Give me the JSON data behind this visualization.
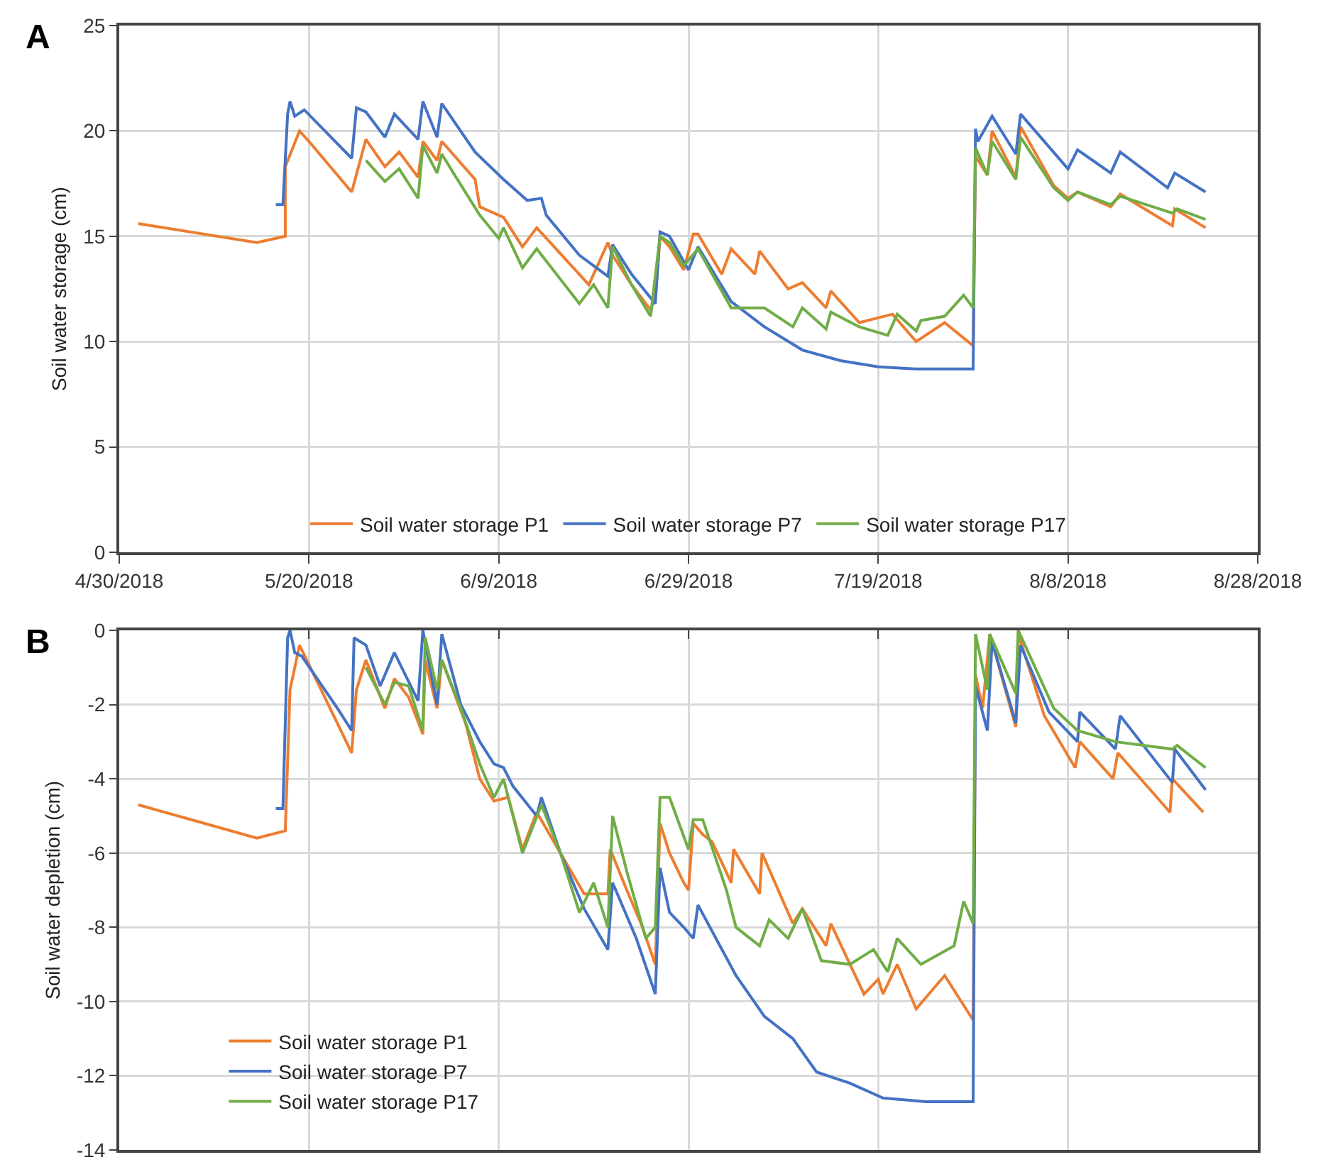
{
  "chart_data": [
    {
      "type": "line",
      "annotations": [
        "A"
      ],
      "ylabel": "Soil water storage (cm)",
      "xlim": [
        "2018-04-30",
        "2018-08-28"
      ],
      "xticks": [
        {
          "value": "2018-04-30",
          "label": "4/30/2018"
        },
        {
          "value": "2018-05-20",
          "label": "5/20/2018"
        },
        {
          "value": "2018-06-09",
          "label": "6/9/2018"
        },
        {
          "value": "2018-06-29",
          "label": "6/29/2018"
        },
        {
          "value": "2018-07-19",
          "label": "7/19/2018"
        },
        {
          "value": "2018-08-08",
          "label": "8/8/2018"
        },
        {
          "value": "2018-08-28",
          "label": "8/28/2018"
        }
      ],
      "ylim": [
        0,
        25
      ],
      "yticks": [
        0,
        5,
        10,
        15,
        20,
        25
      ],
      "grid": true,
      "legend": "bottom",
      "series": [
        {
          "name": "Soil water storage P1",
          "color": "#ed7d31",
          "x": [
            "2018-05-02",
            "2018-05-14T12:00",
            "2018-05-17T12:00",
            "2018-05-17T12:00",
            "2018-05-19",
            "2018-05-20",
            "2018-05-24T12:00",
            "2018-05-26",
            "2018-05-28",
            "2018-05-29T12:00",
            "2018-05-31T12:00",
            "2018-06-01",
            "2018-06-02T12:00",
            "2018-06-03",
            "2018-06-06T12:00",
            "2018-06-07",
            "2018-06-09T12:00",
            "2018-06-11T12:00",
            "2018-06-13",
            "2018-06-18T12:00",
            "2018-06-20T12:00",
            "2018-06-21",
            "2018-06-23",
            "2018-06-25",
            "2018-06-25T12:00",
            "2018-06-26",
            "2018-06-27",
            "2018-06-28T12:00",
            "2018-06-29T12:00",
            "2018-06-30",
            "2018-07-02T12:00",
            "2018-07-03T12:00",
            "2018-07-06",
            "2018-07-06T12:00",
            "2018-07-09T12:00",
            "2018-07-11",
            "2018-07-13T12:00",
            "2018-07-14",
            "2018-07-17",
            "2018-07-20T12:00",
            "2018-07-23",
            "2018-07-26",
            "2018-07-29",
            "2018-07-29T06:00",
            "2018-07-30T12:00",
            "2018-07-31",
            "2018-08-02T12:00",
            "2018-08-03",
            "2018-08-06T12:00",
            "2018-08-08",
            "2018-08-09",
            "2018-08-12T12:00",
            "2018-08-13T12:00",
            "2018-08-19",
            "2018-08-19T06:00",
            "2018-08-22T12:00"
          ],
          "values": [
            15.6,
            14.7,
            15.0,
            18.3,
            20.0,
            19.5,
            17.1,
            19.6,
            18.3,
            19.0,
            17.8,
            19.5,
            18.6,
            19.5,
            17.7,
            16.4,
            15.9,
            14.5,
            15.4,
            12.7,
            14.7,
            14.1,
            12.7,
            11.5,
            12.1,
            15.0,
            14.5,
            13.4,
            15.1,
            15.1,
            13.2,
            14.4,
            13.2,
            14.3,
            12.5,
            12.8,
            11.6,
            12.4,
            10.9,
            11.3,
            10.0,
            10.9,
            9.8,
            18.8,
            17.9,
            20.0,
            17.8,
            20.2,
            17.4,
            16.8,
            17.1,
            16.4,
            17.0,
            15.5,
            16.3,
            15.4
          ]
        },
        {
          "name": "Soil water storage P7",
          "color": "#4472c4",
          "x": [
            "2018-05-16T12:00",
            "2018-05-17T06:00",
            "2018-05-17T18:00",
            "2018-05-18",
            "2018-05-18T12:00",
            "2018-05-19T12:00",
            "2018-05-24T12:00",
            "2018-05-25",
            "2018-05-26",
            "2018-05-28",
            "2018-05-29",
            "2018-05-31T12:00",
            "2018-06-01",
            "2018-06-02T12:00",
            "2018-06-03",
            "2018-06-06T12:00",
            "2018-06-09T12:00",
            "2018-06-12",
            "2018-06-13T12:00",
            "2018-06-14",
            "2018-06-17T12:00",
            "2018-06-20T12:00",
            "2018-06-21",
            "2018-06-23",
            "2018-06-25T12:00",
            "2018-06-26",
            "2018-06-27",
            "2018-06-29",
            "2018-06-30",
            "2018-07-03T12:00",
            "2018-07-07",
            "2018-07-11",
            "2018-07-15",
            "2018-07-19",
            "2018-07-23",
            "2018-07-29",
            "2018-07-29T06:00",
            "2018-07-29T12:00",
            "2018-07-31",
            "2018-08-02T12:00",
            "2018-08-03",
            "2018-08-08",
            "2018-08-09",
            "2018-08-12T12:00",
            "2018-08-13T12:00",
            "2018-08-18T12:00",
            "2018-08-19T06:00",
            "2018-08-22T12:00"
          ],
          "values": [
            16.5,
            16.5,
            20.8,
            21.4,
            20.7,
            21.0,
            18.7,
            21.1,
            20.9,
            19.7,
            20.8,
            19.6,
            21.4,
            19.7,
            21.3,
            19.0,
            17.7,
            16.7,
            16.8,
            16.0,
            14.1,
            13.1,
            14.6,
            13.2,
            11.8,
            15.2,
            15.0,
            13.4,
            14.5,
            11.9,
            10.7,
            9.6,
            9.1,
            8.8,
            8.7,
            8.7,
            20.1,
            19.5,
            20.7,
            18.9,
            20.8,
            18.2,
            19.1,
            18.0,
            19.0,
            17.3,
            18.0,
            17.1
          ]
        },
        {
          "name": "Soil water storage P17",
          "color": "#70ad47",
          "x": [
            "2018-05-26",
            "2018-05-28",
            "2018-05-29T12:00",
            "2018-05-31T12:00",
            "2018-06-01",
            "2018-06-02T12:00",
            "2018-06-03",
            "2018-06-04T12:00",
            "2018-06-07",
            "2018-06-09",
            "2018-06-09T12:00",
            "2018-06-11T12:00",
            "2018-06-13",
            "2018-06-17T12:00",
            "2018-06-19",
            "2018-06-20T12:00",
            "2018-06-21",
            "2018-06-23",
            "2018-06-25",
            "2018-06-26",
            "2018-06-27",
            "2018-06-28T12:00",
            "2018-06-30",
            "2018-07-03T12:00",
            "2018-07-07",
            "2018-07-10",
            "2018-07-11",
            "2018-07-13T12:00",
            "2018-07-14",
            "2018-07-17",
            "2018-07-20",
            "2018-07-21",
            "2018-07-23",
            "2018-07-23T12:00",
            "2018-07-26",
            "2018-07-28",
            "2018-07-29",
            "2018-07-29T06:00",
            "2018-07-30T12:00",
            "2018-07-31",
            "2018-08-02T12:00",
            "2018-08-03",
            "2018-08-06T12:00",
            "2018-08-08",
            "2018-08-09",
            "2018-08-12T12:00",
            "2018-08-13T12:00",
            "2018-08-19",
            "2018-08-19T12:00",
            "2018-08-22T12:00"
          ],
          "values": [
            18.6,
            17.6,
            18.2,
            16.8,
            19.3,
            18.0,
            18.9,
            17.8,
            16.0,
            14.9,
            15.4,
            13.5,
            14.4,
            11.8,
            12.7,
            11.6,
            14.5,
            12.7,
            11.2,
            15.0,
            14.7,
            13.6,
            14.4,
            11.6,
            11.6,
            10.7,
            11.6,
            10.6,
            11.4,
            10.7,
            10.3,
            11.3,
            10.5,
            11.0,
            11.2,
            12.2,
            11.6,
            19.2,
            17.9,
            19.5,
            17.7,
            19.7,
            17.3,
            16.7,
            17.1,
            16.5,
            16.9,
            16.1,
            16.3,
            15.8
          ]
        }
      ]
    },
    {
      "type": "line",
      "annotations": [
        "B"
      ],
      "ylabel": "Soil water depletion (cm)",
      "xlim": [
        "2018-04-30",
        "2018-08-28"
      ],
      "xticks": [
        {
          "value": "2018-04-30",
          "label": null
        },
        {
          "value": "2018-05-20",
          "label": null
        },
        {
          "value": "2018-06-09",
          "label": null
        },
        {
          "value": "2018-06-29",
          "label": null
        },
        {
          "value": "2018-07-19",
          "label": null
        },
        {
          "value": "2018-08-08",
          "label": null
        },
        {
          "value": "2018-08-28",
          "label": null
        }
      ],
      "ylim": [
        -14,
        0
      ],
      "yticks": [
        -14,
        -12,
        -10,
        -8,
        -6,
        -4,
        -2,
        0
      ],
      "tick_labels": "y",
      "grid": true,
      "legend": "bottom left",
      "series": [
        {
          "name": "Soil water storage P1",
          "color": "#ed7d31",
          "x": [
            "2018-05-02",
            "2018-05-14T12:00",
            "2018-05-17T12:00",
            "2018-05-18",
            "2018-05-19",
            "2018-05-24T12:00",
            "2018-05-25",
            "2018-05-26",
            "2018-05-28",
            "2018-05-29",
            "2018-05-30T12:00",
            "2018-06-01",
            "2018-06-01T06:00",
            "2018-06-02T12:00",
            "2018-06-03",
            "2018-06-05T12:00",
            "2018-06-07",
            "2018-06-08T12:00",
            "2018-06-10",
            "2018-06-11T12:00",
            "2018-06-13",
            "2018-06-15T12:00",
            "2018-06-18",
            "2018-06-20T12:00",
            "2018-06-20T18:00",
            "2018-06-22T12:00",
            "2018-06-24",
            "2018-06-25T12:00",
            "2018-06-26",
            "2018-06-27",
            "2018-06-28T12:00",
            "2018-06-29",
            "2018-06-29T12:00",
            "2018-06-30T12:00",
            "2018-07-01T12:00",
            "2018-07-03T12:00",
            "2018-07-03T18:00",
            "2018-07-06T12:00",
            "2018-07-06T18:00",
            "2018-07-10",
            "2018-07-11",
            "2018-07-13T12:00",
            "2018-07-14",
            "2018-07-17T12:00",
            "2018-07-19",
            "2018-07-19T12:00",
            "2018-07-21",
            "2018-07-23",
            "2018-07-26",
            "2018-07-29",
            "2018-07-29T06:00",
            "2018-07-30",
            "2018-07-30T18:00",
            "2018-08-02T12:00",
            "2018-08-02T18:00",
            "2018-08-05T12:00",
            "2018-08-08T18:00",
            "2018-08-09T06:00",
            "2018-08-12T18:00",
            "2018-08-13T06:00",
            "2018-08-18T18:00",
            "2018-08-19",
            "2018-08-22T06:00"
          ],
          "values": [
            -4.7,
            -5.6,
            -5.4,
            -1.6,
            -0.4,
            -3.3,
            -1.6,
            -0.8,
            -2.1,
            -1.3,
            -1.8,
            -2.8,
            -0.8,
            -2.1,
            -0.8,
            -2.5,
            -4.0,
            -4.6,
            -4.5,
            -5.9,
            -4.9,
            -6.0,
            -7.1,
            -7.1,
            -5.9,
            -7.0,
            -7.9,
            -9.0,
            -5.2,
            -6.0,
            -6.8,
            -7.0,
            -5.2,
            -5.5,
            -5.7,
            -6.8,
            -5.9,
            -7.1,
            -6.0,
            -7.9,
            -7.5,
            -8.5,
            -7.9,
            -9.8,
            -9.4,
            -9.8,
            -9.0,
            -10.2,
            -9.3,
            -10.5,
            -1.2,
            -2.1,
            -0.1,
            -2.6,
            -0.1,
            -2.3,
            -3.7,
            -3.0,
            -4.0,
            -3.3,
            -4.9,
            -4.0,
            -4.9
          ]
        },
        {
          "name": "Soil water storage P7",
          "color": "#4472c4",
          "x": [
            "2018-05-16T12:00",
            "2018-05-17T06:00",
            "2018-05-17T18:00",
            "2018-05-18",
            "2018-05-18T12:00",
            "2018-05-19T06:00",
            "2018-05-23",
            "2018-05-24T12:00",
            "2018-05-24T18:00",
            "2018-05-26",
            "2018-05-27T12:00",
            "2018-05-29",
            "2018-05-31T12:00",
            "2018-06-01",
            "2018-06-02T12:00",
            "2018-06-03",
            "2018-06-05",
            "2018-06-07",
            "2018-06-08T12:00",
            "2018-06-09T12:00",
            "2018-06-10T12:00",
            "2018-06-13",
            "2018-06-13T12:00",
            "2018-06-15T12:00",
            "2018-06-18",
            "2018-06-20T12:00",
            "2018-06-21",
            "2018-06-23T12:00",
            "2018-06-25T12:00",
            "2018-06-26",
            "2018-06-27",
            "2018-06-28T12:00",
            "2018-06-29T12:00",
            "2018-06-30",
            "2018-07-04",
            "2018-07-07",
            "2018-07-10",
            "2018-07-12T12:00",
            "2018-07-16",
            "2018-07-19T12:00",
            "2018-07-24",
            "2018-07-29",
            "2018-07-29T06:00",
            "2018-07-30T12:00",
            "2018-07-31",
            "2018-08-02T12:00",
            "2018-08-03",
            "2018-08-06",
            "2018-08-09",
            "2018-08-09T06:00",
            "2018-08-13",
            "2018-08-13T12:00",
            "2018-08-19",
            "2018-08-19T06:00",
            "2018-08-22T12:00"
          ],
          "values": [
            -4.8,
            -4.8,
            -0.2,
            0.0,
            -0.6,
            -0.7,
            -2.1,
            -2.7,
            -0.2,
            -0.4,
            -1.5,
            -0.6,
            -1.9,
            0.0,
            -2.0,
            -0.1,
            -2.0,
            -3.0,
            -3.6,
            -3.7,
            -4.2,
            -5.0,
            -4.5,
            -6.0,
            -7.5,
            -8.6,
            -6.8,
            -8.3,
            -9.8,
            -6.4,
            -7.6,
            -8.0,
            -8.3,
            -7.4,
            -9.3,
            -10.4,
            -11.0,
            -11.9,
            -12.2,
            -12.6,
            -12.7,
            -12.7,
            -1.5,
            -2.7,
            -0.3,
            -2.5,
            -0.4,
            -2.2,
            -3.0,
            -2.2,
            -3.2,
            -2.3,
            -4.1,
            -3.2,
            -4.3
          ]
        },
        {
          "name": "Soil water storage P17",
          "color": "#70ad47",
          "x": [
            "2018-05-26",
            "2018-05-28",
            "2018-05-29",
            "2018-05-30T12:00",
            "2018-06-01",
            "2018-06-01T06:00",
            "2018-06-02T12:00",
            "2018-06-03",
            "2018-06-05",
            "2018-06-07",
            "2018-06-08T12:00",
            "2018-06-09T12:00",
            "2018-06-11T12:00",
            "2018-06-13T12:00",
            "2018-06-15T12:00",
            "2018-06-17T12:00",
            "2018-06-19",
            "2018-06-20T12:00",
            "2018-06-21",
            "2018-06-22T12:00",
            "2018-06-24T12:00",
            "2018-06-25T12:00",
            "2018-06-26",
            "2018-06-27",
            "2018-06-29",
            "2018-06-29T12:00",
            "2018-06-30T12:00",
            "2018-07-03",
            "2018-07-04",
            "2018-07-06T12:00",
            "2018-07-07T12:00",
            "2018-07-09T12:00",
            "2018-07-11",
            "2018-07-13",
            "2018-07-16",
            "2018-07-18T12:00",
            "2018-07-20",
            "2018-07-21",
            "2018-07-23T12:00",
            "2018-07-27",
            "2018-07-28",
            "2018-07-29",
            "2018-07-29T06:00",
            "2018-07-30T12:00",
            "2018-07-30T18:00",
            "2018-08-02T12:00",
            "2018-08-02T18:00",
            "2018-08-06T12:00",
            "2018-08-09",
            "2018-08-13",
            "2018-08-19",
            "2018-08-19T12:00",
            "2018-08-22T12:00"
          ],
          "values": [
            -1.0,
            -2.0,
            -1.4,
            -1.5,
            -2.7,
            -0.2,
            -1.6,
            -0.8,
            -2.1,
            -3.6,
            -4.5,
            -4.0,
            -6.0,
            -4.7,
            -6.0,
            -7.6,
            -6.8,
            -8.0,
            -5.0,
            -6.5,
            -8.3,
            -8.0,
            -4.5,
            -4.5,
            -5.9,
            -5.1,
            -5.1,
            -7.0,
            -8.0,
            -8.5,
            -7.8,
            -8.3,
            -7.5,
            -8.9,
            -9.0,
            -8.6,
            -9.2,
            -8.3,
            -9.0,
            -8.5,
            -7.3,
            -7.9,
            -0.1,
            -1.6,
            -0.1,
            -1.7,
            0.0,
            -2.1,
            -2.7,
            -3.0,
            -3.2,
            -3.1,
            -3.7
          ]
        }
      ]
    }
  ]
}
